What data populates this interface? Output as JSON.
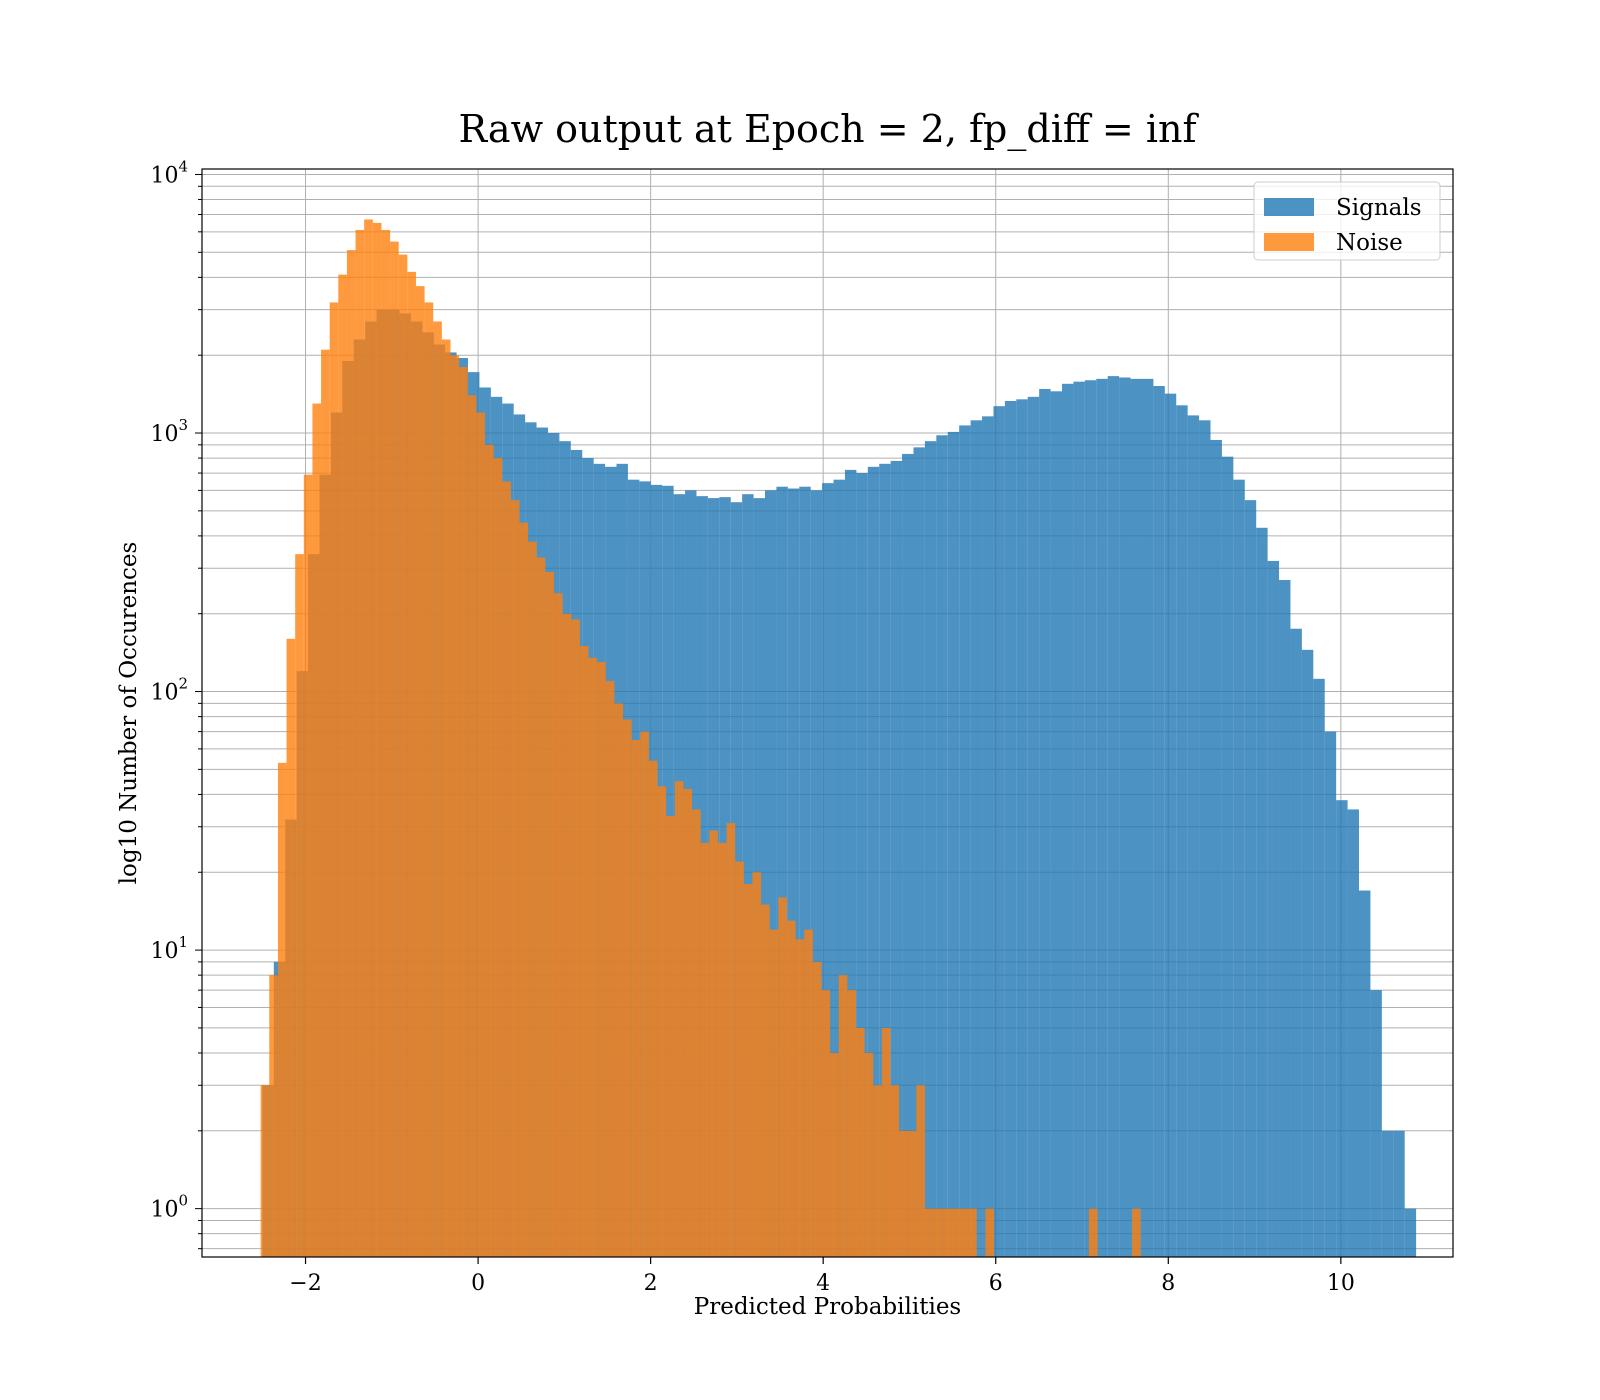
{
  "chart_data": {
    "type": "histogram",
    "title": "Raw output at Epoch = 2, fp_diff = inf",
    "xlabel": "Predicted Probabilities",
    "ylabel": "log10 Number of Occurences",
    "xlim": [
      -3.2,
      11.3
    ],
    "ylim": [
      0.65,
      10500
    ],
    "yscale": "log",
    "grid": "both (major and minor)",
    "legend_position": "top-right",
    "x_ticks": [
      -2,
      0,
      2,
      4,
      6,
      8,
      10
    ],
    "x_tick_labels": [
      "−2",
      "0",
      "2",
      "4",
      "6",
      "8",
      "10"
    ],
    "y_ticks": [
      {
        "value": 1,
        "base": "10",
        "exp": "0"
      },
      {
        "value": 10,
        "base": "10",
        "exp": "1"
      },
      {
        "value": 100,
        "base": "10",
        "exp": "2"
      },
      {
        "value": 1000,
        "base": "10",
        "exp": "3"
      },
      {
        "value": 10000,
        "base": "10",
        "exp": "4"
      }
    ],
    "series": [
      {
        "name": "Signals",
        "color": "#1f77b4",
        "opacity": 0.8,
        "bin_start": -2.5,
        "bin_width": 0.1324,
        "values": [
          3,
          9,
          32,
          120,
          340,
          690,
          1200,
          1900,
          2300,
          2700,
          3000,
          3000,
          2900,
          2700,
          2450,
          2200,
          2050,
          1950,
          1720,
          1500,
          1380,
          1300,
          1180,
          1100,
          1050,
          1000,
          930,
          860,
          800,
          760,
          740,
          760,
          660,
          650,
          630,
          625,
          580,
          600,
          570,
          560,
          565,
          540,
          580,
          560,
          600,
          620,
          610,
          620,
          600,
          640,
          660,
          720,
          700,
          740,
          760,
          780,
          830,
          880,
          930,
          980,
          1010,
          1070,
          1120,
          1160,
          1270,
          1330,
          1350,
          1380,
          1480,
          1450,
          1550,
          1580,
          1600,
          1620,
          1660,
          1640,
          1620,
          1620,
          1520,
          1420,
          1280,
          1170,
          1120,
          940,
          810,
          660,
          550,
          430,
          320,
          270,
          175,
          145,
          112,
          70,
          38,
          35,
          17,
          7,
          2,
          2,
          1
        ]
      },
      {
        "name": "Noise",
        "color": "#ff7f0e",
        "opacity": 0.8,
        "bin_start": -2.52,
        "bin_width": 0.1,
        "values": [
          3,
          8,
          53,
          160,
          340,
          690,
          1300,
          2100,
          3200,
          4100,
          5100,
          6100,
          6700,
          6500,
          6100,
          5500,
          4900,
          4200,
          3700,
          3200,
          2700,
          2300,
          2000,
          1800,
          1400,
          1200,
          900,
          800,
          650,
          550,
          450,
          380,
          330,
          290,
          240,
          200,
          190,
          150,
          135,
          130,
          110,
          90,
          78,
          65,
          70,
          54,
          43,
          33,
          45,
          42,
          35,
          26,
          29,
          26,
          31,
          22,
          18,
          20,
          15,
          12,
          16,
          13,
          11,
          12,
          9,
          7,
          4,
          8,
          7,
          5,
          4,
          3,
          5,
          3,
          2,
          2,
          3,
          1,
          1,
          1,
          1,
          1,
          1,
          0,
          1,
          0,
          0,
          0,
          0,
          0,
          0,
          0,
          0,
          0,
          0,
          0,
          1,
          0,
          0,
          0,
          0,
          1
        ]
      }
    ]
  }
}
